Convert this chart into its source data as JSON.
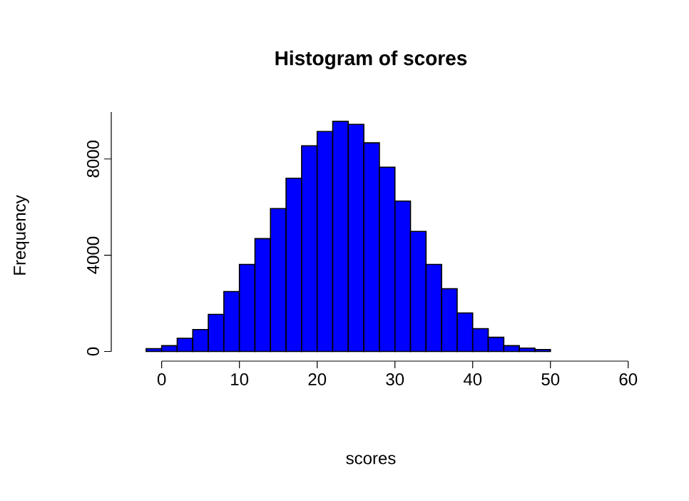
{
  "chart_data": {
    "type": "histogram",
    "title": "Histogram of scores",
    "xlabel": "scores",
    "ylabel": "Frequency",
    "bins": [
      -4,
      -2,
      0,
      2,
      4,
      6,
      8,
      10,
      12,
      14,
      16,
      18,
      20,
      22,
      24,
      26,
      28,
      30,
      32,
      34,
      36,
      38,
      40,
      42,
      44,
      46,
      48,
      50,
      52,
      54,
      56,
      58
    ],
    "values": [
      0,
      120,
      240,
      550,
      910,
      1540,
      2490,
      3620,
      4690,
      5940,
      7200,
      8550,
      9140,
      9560,
      9440,
      8670,
      7660,
      6250,
      4990,
      3620,
      2610,
      1600,
      950,
      590,
      240,
      140,
      80,
      0,
      0,
      0,
      0
    ],
    "color": "#0000ff",
    "xlim": [
      -6.48,
      60.48
    ],
    "ylim": [
      -400,
      9950
    ],
    "xticks": [
      0,
      10,
      20,
      30,
      40,
      50,
      60
    ],
    "yticks": [
      0,
      4000,
      8000
    ]
  }
}
